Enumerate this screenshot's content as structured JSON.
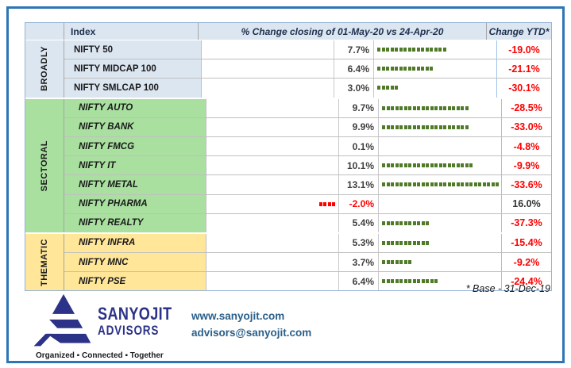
{
  "table": {
    "headers": {
      "index": "Index",
      "change": "% Change closing of 01-May-20 vs 24-Apr-20",
      "ytd": "Change YTD*"
    },
    "footnote": "* Base - 31-Dec-19",
    "sections": [
      {
        "group": "BROADLY",
        "bg": "#DCE6F1",
        "italic": false,
        "rows": [
          {
            "index": "NIFTY 50",
            "change": "7.7%",
            "bar_dashes": 16,
            "bar_direction": "positive",
            "ytd": "-19.0%"
          },
          {
            "index": "NIFTY MIDCAP 100",
            "change": "6.4%",
            "bar_dashes": 13,
            "bar_direction": "positive",
            "ytd": "-21.1%"
          },
          {
            "index": "NIFTY SMLCAP 100",
            "change": "3.0%",
            "bar_dashes": 5,
            "bar_direction": "positive",
            "ytd": "-30.1%"
          }
        ]
      },
      {
        "group": "SECTORAL",
        "bg": "#A9E0A0",
        "italic": true,
        "rows": [
          {
            "index": "NIFTY AUTO",
            "change": "9.7%",
            "bar_dashes": 20,
            "bar_direction": "positive",
            "ytd": "-28.5%"
          },
          {
            "index": "NIFTY BANK",
            "change": "9.9%",
            "bar_dashes": 20,
            "bar_direction": "positive",
            "ytd": "-33.0%"
          },
          {
            "index": "NIFTY FMCG",
            "change": "0.1%",
            "bar_dashes": 0,
            "bar_direction": "positive",
            "ytd": "-4.8%"
          },
          {
            "index": "NIFTY IT",
            "change": "10.1%",
            "bar_dashes": 21,
            "bar_direction": "positive",
            "ytd": "-9.9%"
          },
          {
            "index": "NIFTY METAL",
            "change": "13.1%",
            "bar_dashes": 27,
            "bar_direction": "positive",
            "ytd": "-33.6%"
          },
          {
            "index": "NIFTY PHARMA",
            "change": "-2.0%",
            "bar_dashes": 4,
            "bar_direction": "negative",
            "ytd": "16.0%"
          },
          {
            "index": "NIFTY REALTY",
            "change": "5.4%",
            "bar_dashes": 11,
            "bar_direction": "positive",
            "ytd": "-37.3%"
          }
        ]
      },
      {
        "group": "THEMATIC",
        "bg": "#FFE699",
        "italic": true,
        "rows": [
          {
            "index": "NIFTY INFRA",
            "change": "5.3%",
            "bar_dashes": 11,
            "bar_direction": "positive",
            "ytd": "-15.4%"
          },
          {
            "index": "NIFTY MNC",
            "change": "3.7%",
            "bar_dashes": 7,
            "bar_direction": "positive",
            "ytd": "-9.2%"
          },
          {
            "index": "NIFTY PSE",
            "change": "6.4%",
            "bar_dashes": 13,
            "bar_direction": "positive",
            "ytd": "-24.4%"
          }
        ]
      }
    ]
  },
  "chart_data": {
    "type": "table",
    "title": "% Change closing of 01-May-20 vs 24-Apr-20",
    "footnote": "* Base - 31-Dec-19",
    "categories": [
      "NIFTY 50",
      "NIFTY MIDCAP 100",
      "NIFTY SMLCAP 100",
      "NIFTY AUTO",
      "NIFTY BANK",
      "NIFTY FMCG",
      "NIFTY IT",
      "NIFTY METAL",
      "NIFTY PHARMA",
      "NIFTY REALTY",
      "NIFTY INFRA",
      "NIFTY MNC",
      "NIFTY PSE"
    ],
    "groups": [
      {
        "name": "BROADLY",
        "members": [
          "NIFTY 50",
          "NIFTY MIDCAP 100",
          "NIFTY SMLCAP 100"
        ]
      },
      {
        "name": "SECTORAL",
        "members": [
          "NIFTY AUTO",
          "NIFTY BANK",
          "NIFTY FMCG",
          "NIFTY IT",
          "NIFTY METAL",
          "NIFTY PHARMA",
          "NIFTY REALTY"
        ]
      },
      {
        "name": "THEMATIC",
        "members": [
          "NIFTY INFRA",
          "NIFTY MNC",
          "NIFTY PSE"
        ]
      }
    ],
    "series": [
      {
        "name": "% Change closing of 01-May-20 vs 24-Apr-20",
        "values": [
          7.7,
          6.4,
          3.0,
          9.7,
          9.9,
          0.1,
          10.1,
          13.1,
          -2.0,
          5.4,
          5.3,
          3.7,
          6.4
        ]
      },
      {
        "name": "Change YTD*",
        "values": [
          -19.0,
          -21.1,
          -30.1,
          -28.5,
          -33.0,
          -4.8,
          -9.9,
          -33.6,
          16.0,
          -37.3,
          -15.4,
          -9.2,
          -24.4
        ]
      }
    ],
    "bar_style": "dashed data bars, green = positive (right), red = negative (left)"
  },
  "branding": {
    "logo_name": "SANYOJIT",
    "logo_sub": "ADVISORS",
    "tagline": "Organized ▪ Connected ▪ Together",
    "website": "www.sanyojit.com",
    "email": "advisors@sanyojit.com"
  },
  "colors": {
    "frame_blue": "#2E75B6",
    "header_bg": "#DCE6F1",
    "sectoral_bg": "#A9E0A0",
    "thematic_bg": "#FFE699",
    "bar_positive": "#4F7A28",
    "negative_red": "#FF0000",
    "value_text": "#404040",
    "logo_navy": "#2B3288",
    "contact_blue": "#2A5F8A"
  }
}
